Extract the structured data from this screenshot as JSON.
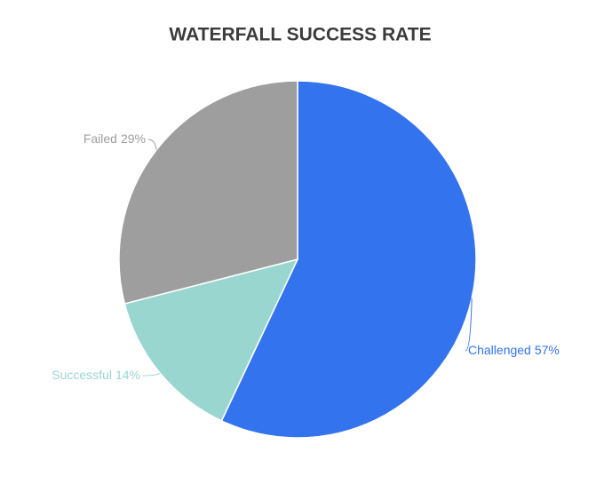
{
  "chart_data": {
    "type": "pie",
    "title": "WATERFALL SUCCESS RATE",
    "categories": [
      "Challenged",
      "Successful",
      "Failed"
    ],
    "values": [
      57,
      14,
      29
    ],
    "value_labels": [
      "57%",
      "14%",
      "29%"
    ],
    "colors": [
      "#3373ee",
      "#9ad6d0",
      "#9e9e9e"
    ]
  }
}
